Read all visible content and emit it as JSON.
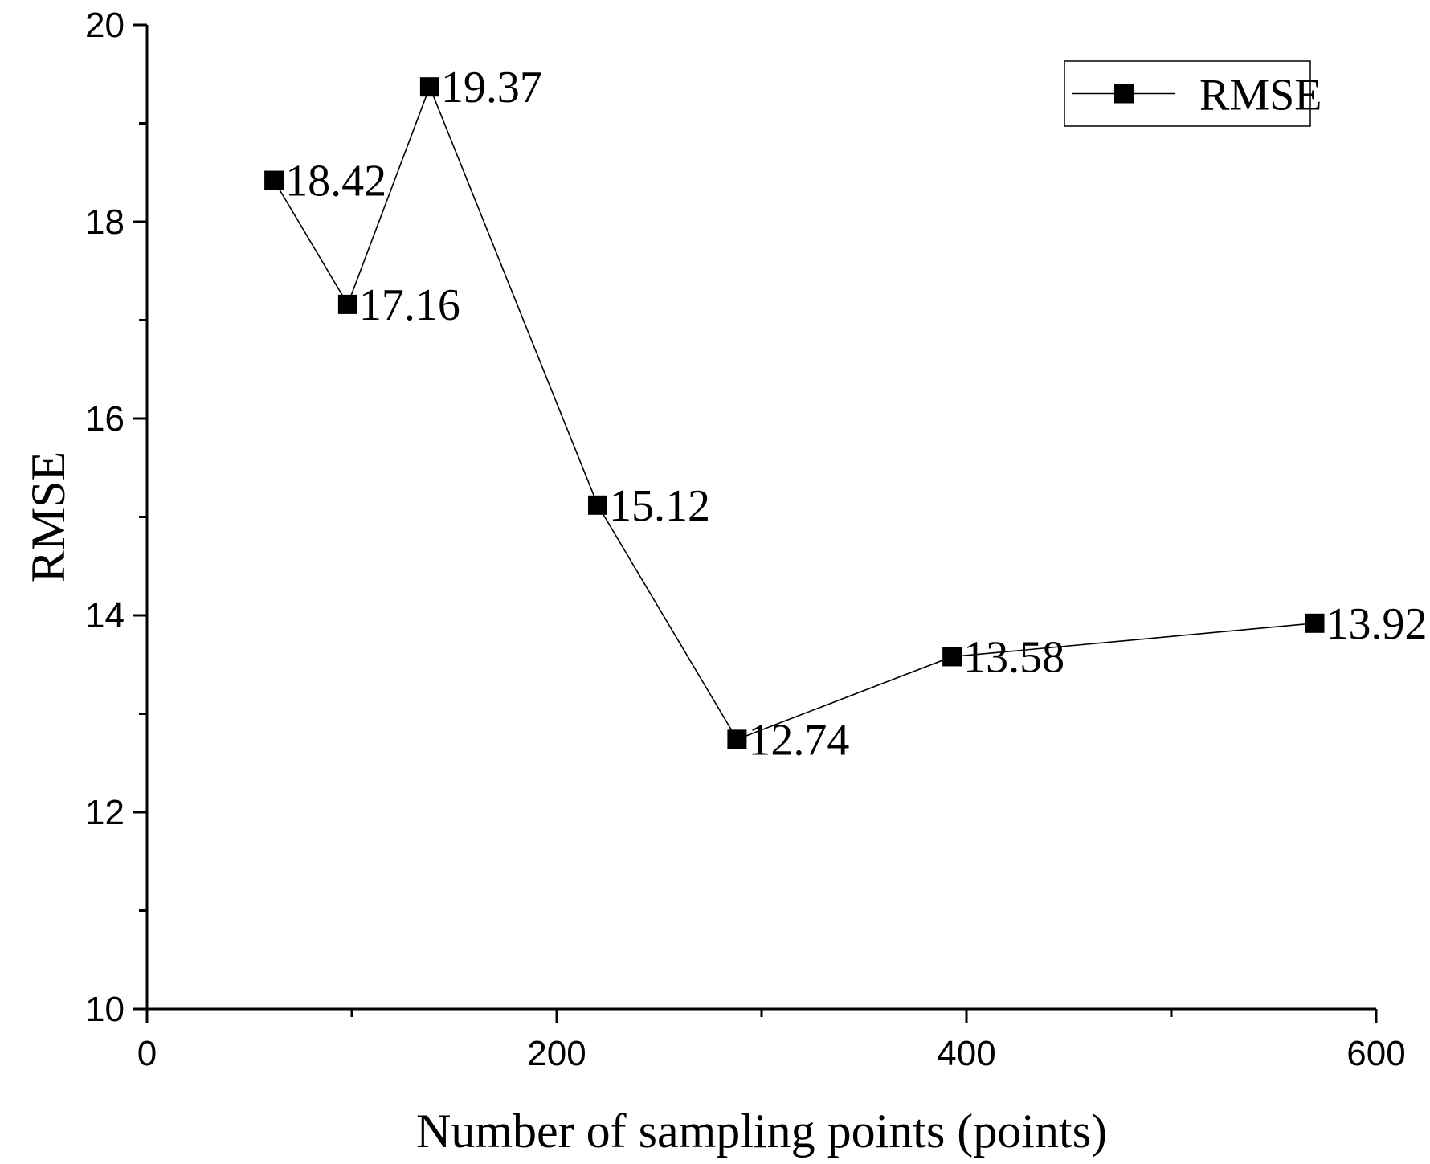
{
  "chart_data": {
    "type": "line",
    "title": "",
    "xlabel": "Number of sampling points (points)",
    "ylabel": "RMSE",
    "xlim": [
      0,
      600
    ],
    "ylim": [
      10,
      20
    ],
    "x_ticks": [
      0,
      200,
      400,
      600
    ],
    "x_minor_ticks": [
      100,
      300,
      500
    ],
    "y_ticks": [
      10,
      12,
      14,
      16,
      18,
      20
    ],
    "y_minor_ticks": [
      11,
      13,
      15,
      17,
      19
    ],
    "grid": false,
    "legend_position": "top-right",
    "series": [
      {
        "name": "RMSE",
        "color": "#000000",
        "marker": "square",
        "x": [
          62,
          98,
          138,
          220,
          288,
          393,
          570
        ],
        "values": [
          18.42,
          17.16,
          19.37,
          15.12,
          12.74,
          13.58,
          13.92
        ],
        "data_labels": [
          "18.42",
          "17.16",
          "19.37",
          "15.12",
          "12.74",
          "13.58",
          "13.92"
        ]
      }
    ]
  }
}
